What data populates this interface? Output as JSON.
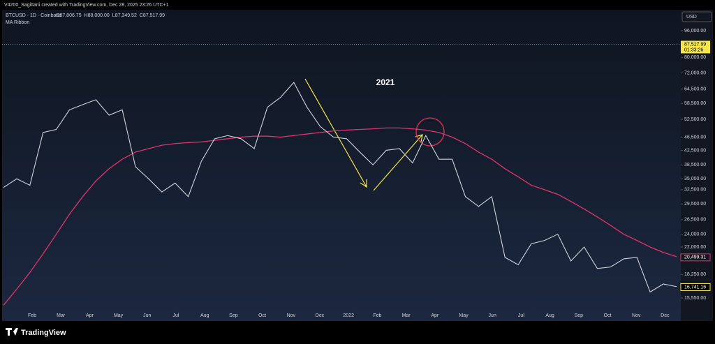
{
  "header": {
    "attribution": "V4200_Sagittarii created with TradingView.com, Dec 28, 2025 23:26 UTC+1",
    "symbol": "BTCUSD · 1D · Coinbase",
    "ohlc": [
      "O87,806.75",
      "H88,000.00",
      "L87,349.52",
      "C87,517.99"
    ],
    "indicator": "MA Ribbon"
  },
  "chart": {
    "scale": "log",
    "currency": "USD",
    "yticks": [
      {
        "value": 96000,
        "label": "96,000.00"
      },
      {
        "value": 80000,
        "label": "80,000.00"
      },
      {
        "value": 72000,
        "label": "72,000.00"
      },
      {
        "value": 64500,
        "label": "64,500.00"
      },
      {
        "value": 58500,
        "label": "58,500.00"
      },
      {
        "value": 52500,
        "label": "52,500.00"
      },
      {
        "value": 46500,
        "label": "46,500.00"
      },
      {
        "value": 42500,
        "label": "42,500.00"
      },
      {
        "value": 38500,
        "label": "38,500.00"
      },
      {
        "value": 35000,
        "label": "35,000.00"
      },
      {
        "value": 32500,
        "label": "32,500.00"
      },
      {
        "value": 29500,
        "label": "29,500.00"
      },
      {
        "value": 26500,
        "label": "26,500.00"
      },
      {
        "value": 24000,
        "label": "24,000.00"
      },
      {
        "value": 22000,
        "label": "22,000.00"
      },
      {
        "value": 18250,
        "label": "18,250.00"
      },
      {
        "value": 15550,
        "label": "15,550.00"
      }
    ],
    "time_labels": [
      "Feb",
      "Mar",
      "Apr",
      "May",
      "Jun",
      "Jul",
      "Aug",
      "Sep",
      "Oct",
      "Nov",
      "Dec",
      "2022",
      "Feb",
      "Mar",
      "Apr",
      "May",
      "Jun",
      "Jul",
      "Aug",
      "Sep",
      "Oct",
      "Nov",
      "Dec"
    ],
    "price": {
      "color": "#d1d4dc",
      "values": [
        33000,
        35000,
        33500,
        48000,
        49000,
        56000,
        58000,
        60000,
        54000,
        56000,
        38000,
        35000,
        32000,
        34000,
        31000,
        39500,
        46000,
        47000,
        46000,
        43000,
        57000,
        61000,
        67500,
        57000,
        50000,
        46500,
        46000,
        42000,
        38500,
        42500,
        43000,
        39000,
        47000,
        40000,
        40000,
        31000,
        29000,
        31000,
        20500,
        19500,
        22500,
        23000,
        24000,
        20000,
        22000,
        19000,
        19200,
        20300,
        20500,
        16200,
        17100,
        16800
      ]
    },
    "ma": {
      "color": "#e0336f",
      "values": [
        14800,
        16500,
        18500,
        21000,
        24000,
        27500,
        31000,
        34500,
        37500,
        40000,
        42000,
        43000,
        44000,
        44500,
        44800,
        45000,
        45500,
        46000,
        46500,
        46800,
        46800,
        46500,
        47000,
        47500,
        48000,
        48500,
        48800,
        49000,
        49200,
        49500,
        49500,
        49200,
        48800,
        48000,
        46500,
        44500,
        42000,
        40000,
        37500,
        35500,
        33500,
        32500,
        31500,
        30000,
        28500,
        27000,
        25500,
        24000,
        23000,
        22000,
        21200,
        20600
      ]
    },
    "price_labels": [
      {
        "value": 87517.99,
        "label": "87,517.99",
        "countdown": "01:33:26",
        "color": "#f5e74a"
      },
      {
        "value": 20499.31,
        "label": "20,499.31",
        "color": "#e0336f"
      },
      {
        "value": 16741.16,
        "label": "16,741.16",
        "color": "#f5e74a"
      }
    ],
    "annotation": "2021"
  },
  "footer": {
    "brand": "TradingView"
  }
}
